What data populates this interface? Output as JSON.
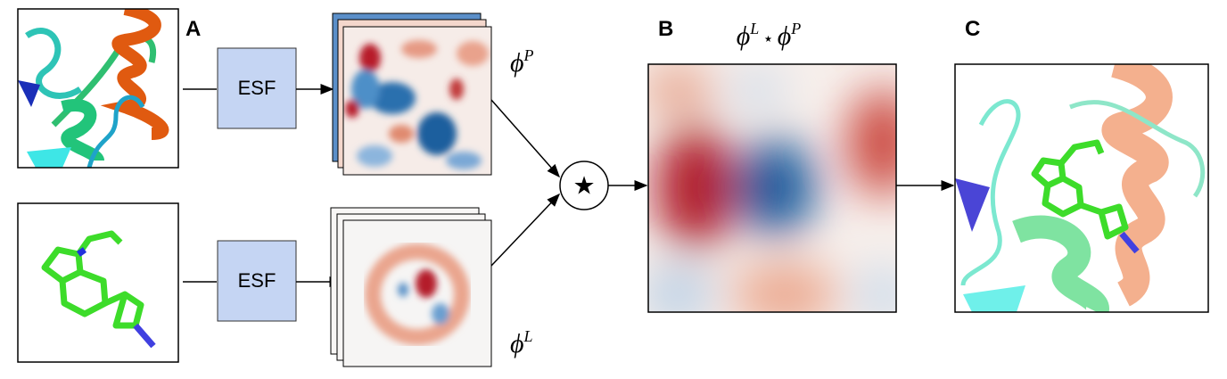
{
  "panels": {
    "a": "A",
    "b": "B",
    "c": "C"
  },
  "boxes": [
    "ESF",
    "ESF"
  ],
  "protein_map": {
    "base": "ϕ",
    "sup": "P"
  },
  "ligand_map": {
    "base": "ϕ",
    "sup": "L"
  },
  "operator": "★",
  "formula": {
    "left_base": "ϕ",
    "left_sup": "L",
    "op": "⋆",
    "right_base": "ϕ",
    "right_sup": "P"
  }
}
